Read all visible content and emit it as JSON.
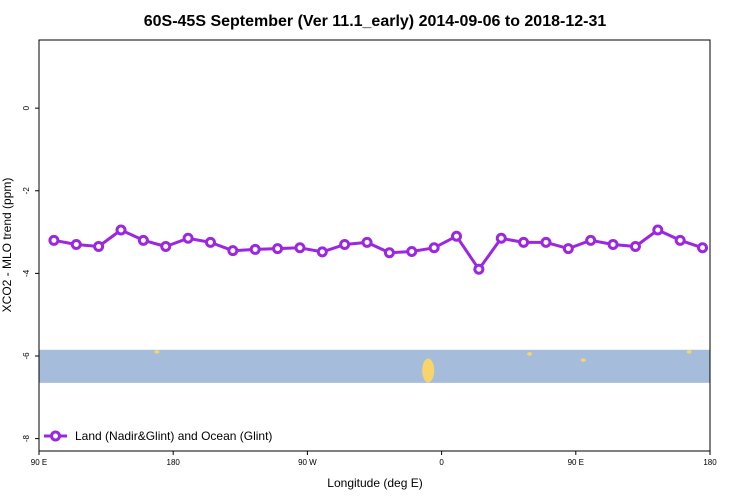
{
  "chart_data": {
    "type": "line",
    "title": "60S-45S September (Ver 11.1_early)   2014-09-06 to 2018-12-31",
    "xlabel": "Longitude (deg E)",
    "ylabel": "XCO2 - MLO trend (ppm)",
    "x_ticks": [
      {
        "value": 90,
        "label": "90 E"
      },
      {
        "value": 180,
        "label": "180"
      },
      {
        "value": 270,
        "label": "90 W"
      },
      {
        "value": 360,
        "label": "0"
      },
      {
        "value": 450,
        "label": "90 E"
      },
      {
        "value": 540,
        "label": "180"
      }
    ],
    "y_ticks": [
      {
        "value": 0,
        "label": "0"
      },
      {
        "value": -2,
        "label": "-2"
      },
      {
        "value": -4,
        "label": "-4"
      },
      {
        "value": -6,
        "label": "-6"
      },
      {
        "value": -8,
        "label": "-8"
      }
    ],
    "xlim": [
      90,
      540
    ],
    "ylim": [
      -8.3,
      1.65
    ],
    "grid": false,
    "legend_position": "bottom-left",
    "series": [
      {
        "name": "Land (Nadir&Glint) and Ocean (Glint)",
        "color": "#9b27e0",
        "x": [
          100,
          115,
          130,
          145,
          160,
          175,
          190,
          205,
          220,
          235,
          250,
          265,
          280,
          295,
          310,
          325,
          340,
          355,
          370,
          385,
          400,
          415,
          430,
          445,
          460,
          475,
          490,
          505,
          520,
          535
        ],
        "y": [
          -3.2,
          -3.3,
          -3.35,
          -2.95,
          -3.2,
          -3.35,
          -3.15,
          -3.25,
          -3.45,
          -3.42,
          -3.4,
          -3.38,
          -3.48,
          -3.3,
          -3.25,
          -3.5,
          -3.47,
          -3.38,
          -3.1,
          -3.9,
          -3.15,
          -3.25,
          -3.25,
          -3.4,
          -3.2,
          -3.3,
          -3.35,
          -2.95,
          -3.2,
          -3.38
        ]
      }
    ],
    "map_band": {
      "lat_label": "60S-45S",
      "y_range": [
        -6.65,
        -5.85
      ],
      "ocean_color": "#a5bcdb",
      "land_color": "#f7d56a",
      "land_patches": [
        {
          "x": 169,
          "y": -5.9
        },
        {
          "x": 351,
          "y": -6.35
        },
        {
          "x": 419,
          "y": -5.95
        },
        {
          "x": 455,
          "y": -6.1
        },
        {
          "x": 526,
          "y": -5.9
        }
      ]
    }
  }
}
